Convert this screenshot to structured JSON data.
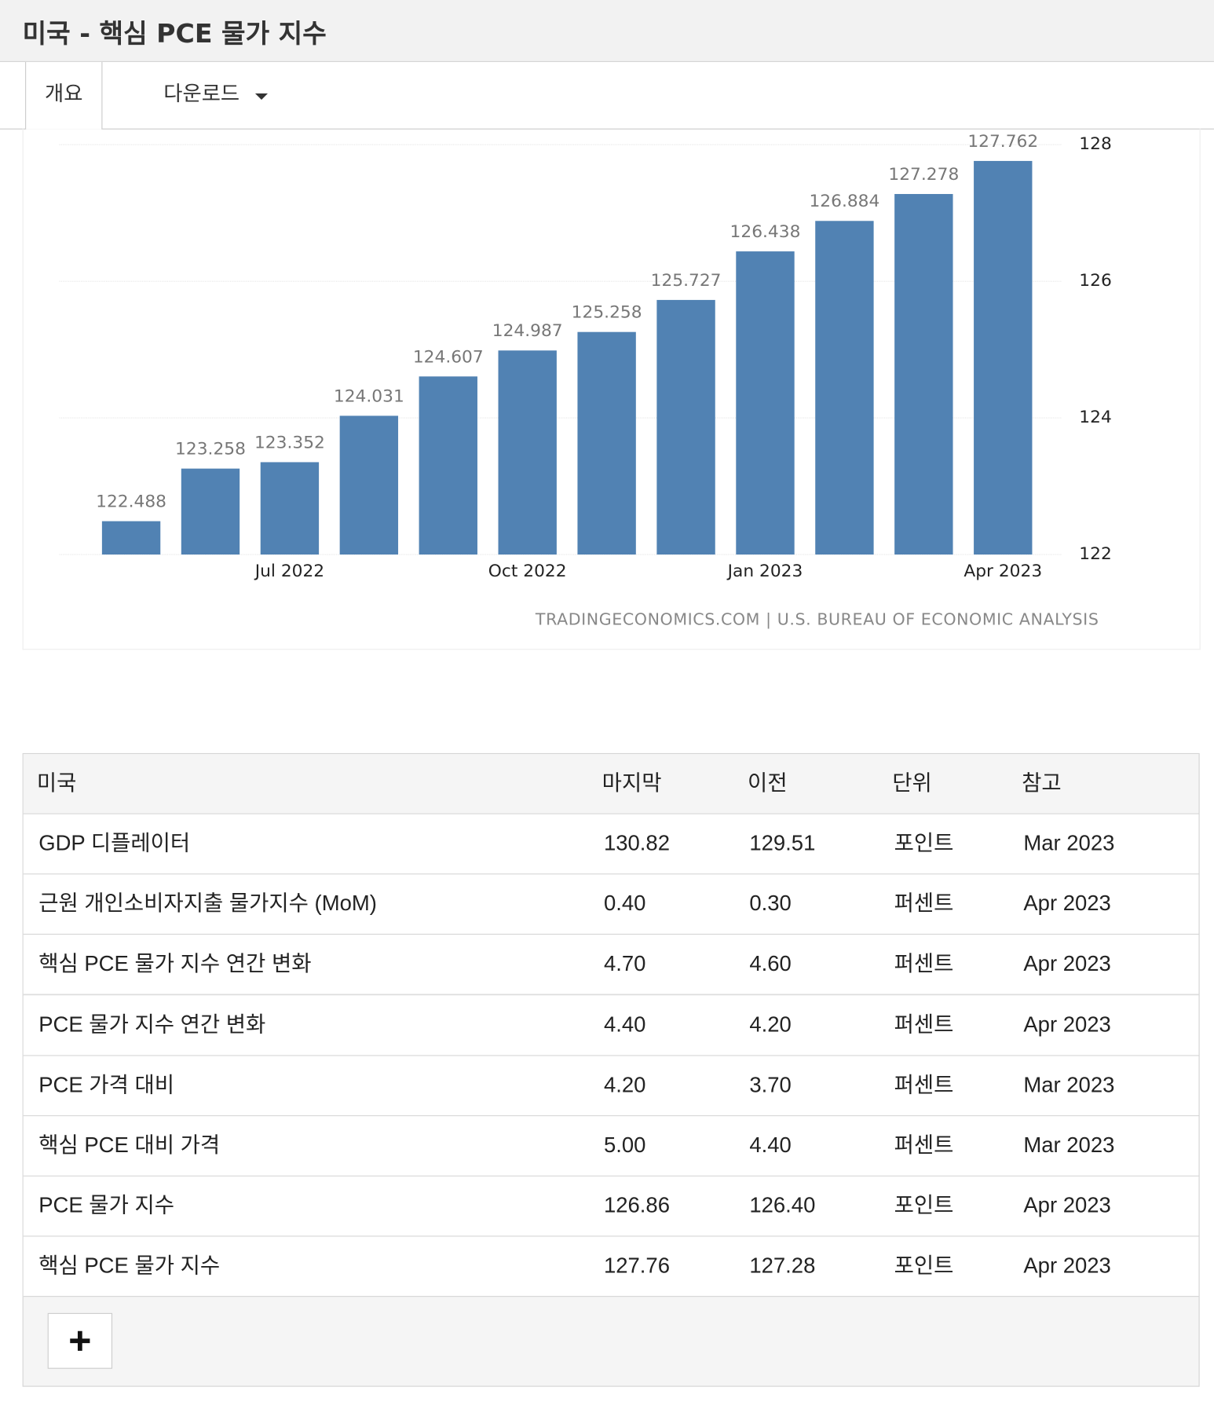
{
  "header": {
    "title": "미국 - 핵심 PCE 물가 지수"
  },
  "tabs": [
    "개요",
    "다운로드"
  ],
  "chart_data": {
    "type": "bar",
    "categories": [
      null,
      null,
      "Jul 2022",
      null,
      null,
      "Oct 2022",
      null,
      null,
      "Jan 2023",
      null,
      null,
      "Apr 2023"
    ],
    "values": [
      122.488,
      123.258,
      123.352,
      124.031,
      124.607,
      124.987,
      125.258,
      125.727,
      126.438,
      126.884,
      127.278,
      127.762
    ],
    "color": "#5182b3",
    "ylim": [
      122,
      128
    ],
    "yticks": [
      122,
      124,
      126,
      128
    ],
    "grid": true,
    "source": "TRADINGECONOMICS.COM | U.S. BUREAU OF ECONOMIC ANALYSIS"
  },
  "table": {
    "header": [
      "미국",
      "마지막",
      "이전",
      "단위",
      "참고"
    ],
    "rows": [
      [
        "GDP 디플레이터",
        "130.82",
        "129.51",
        "포인트",
        "Mar 2023"
      ],
      [
        "근원 개인소비자지출 물가지수 (MoM)",
        "0.40",
        "0.30",
        "퍼센트",
        "Apr 2023"
      ],
      [
        "핵심 PCE 물가 지수 연간 변화",
        "4.70",
        "4.60",
        "퍼센트",
        "Apr 2023"
      ],
      [
        "PCE 물가 지수 연간 변화",
        "4.40",
        "4.20",
        "퍼센트",
        "Apr 2023"
      ],
      [
        "PCE 가격 대비",
        "4.20",
        "3.70",
        "퍼센트",
        "Mar 2023"
      ],
      [
        "핵심 PCE 대비 가격",
        "5.00",
        "4.40",
        "퍼센트",
        "Mar 2023"
      ],
      [
        "PCE 물가 지수",
        "126.86",
        "126.40",
        "포인트",
        "Apr 2023"
      ],
      [
        "핵심 PCE 물가 지수",
        "127.76",
        "127.28",
        "포인트",
        "Apr 2023"
      ]
    ]
  }
}
